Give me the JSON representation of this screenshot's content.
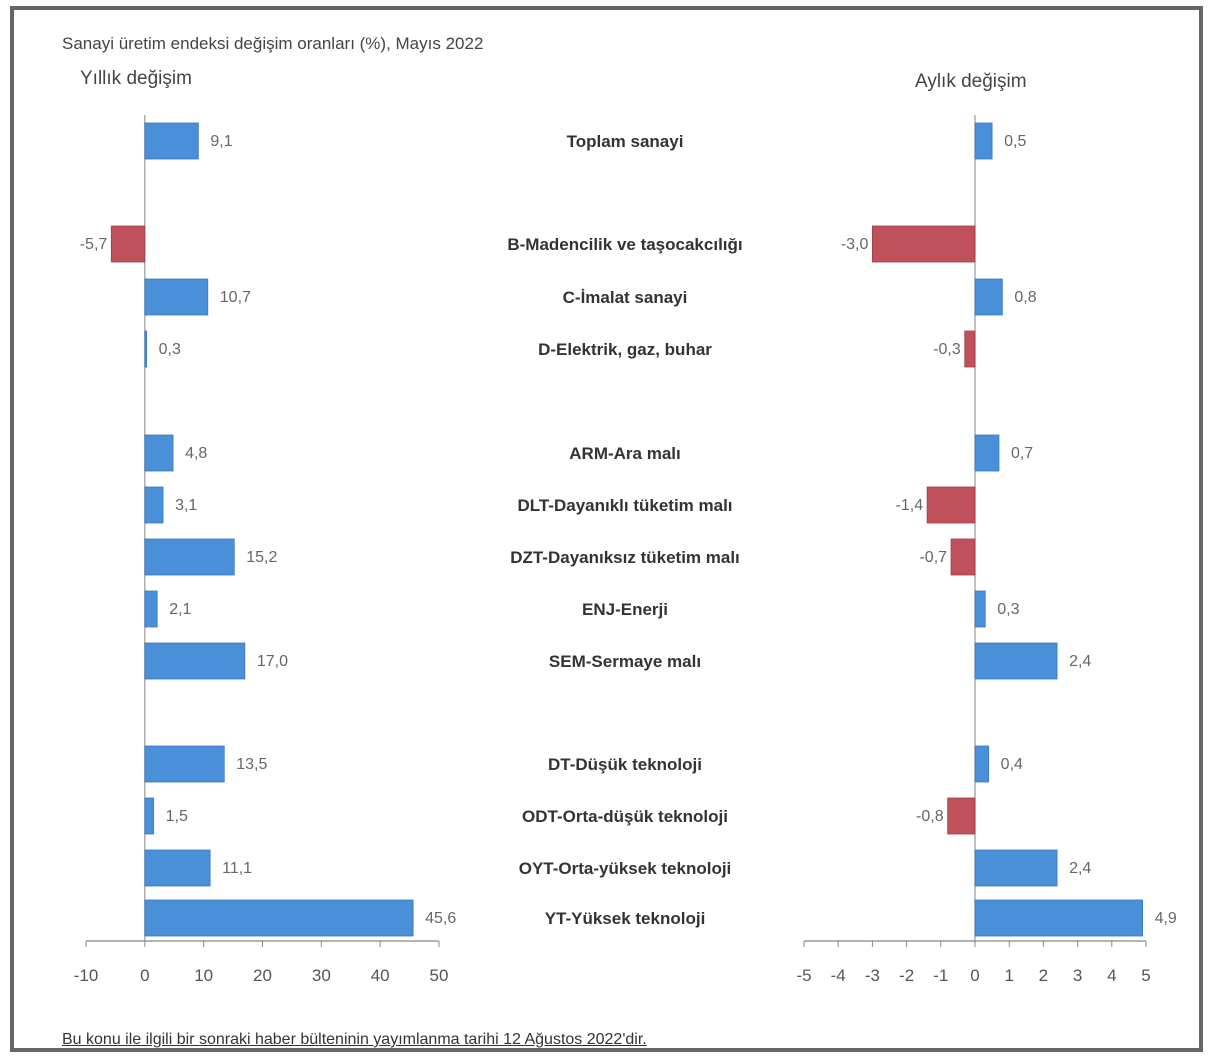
{
  "chart_data": {
    "type": "bar",
    "title": "Sanayi üretim endeksi değişim oranları (%), Mayıs 2022",
    "categories": [
      "Toplam sanayi",
      "B-Madencilik ve taşocakcılığı",
      "C-İmalat sanayi",
      "D-Elektrik, gaz, buhar",
      "ARM-Ara malı",
      "DLT-Dayanıklı tüketim malı",
      "DZT-Dayanıksız tüketim malı",
      "ENJ-Enerji",
      "SEM-Sermaye malı",
      "DT-Düşük teknoloji",
      "ODT-Orta-düşük teknoloji",
      "OYT-Orta-yüksek teknoloji",
      "YT-Yüksek teknoloji"
    ],
    "panels": [
      {
        "title": "Yıllık değişim",
        "values": [
          9.1,
          -5.7,
          10.7,
          0.3,
          4.8,
          3.1,
          15.2,
          2.1,
          17.0,
          13.5,
          1.5,
          11.1,
          45.6
        ],
        "labels": [
          "9,1",
          "-5,7",
          "10,7",
          "0,3",
          "4,8",
          "3,1",
          "15,2",
          "2,1",
          "17,0",
          "13,5",
          "1,5",
          "11,1",
          "45,6"
        ],
        "xlim": [
          -10,
          50
        ],
        "ticks": [
          "-10",
          "0",
          "10",
          "20",
          "30",
          "40",
          "50"
        ]
      },
      {
        "title": "Aylık değişim",
        "values": [
          0.5,
          -3.0,
          0.8,
          -0.3,
          0.7,
          -1.4,
          -0.7,
          0.3,
          2.4,
          0.4,
          -0.8,
          2.4,
          4.9
        ],
        "labels": [
          "0,5",
          "-3,0",
          "0,8",
          "-0,3",
          "0,7",
          "-1,4",
          "-0,7",
          "0,3",
          "2,4",
          "0,4",
          "-0,8",
          "2,4",
          "4,9"
        ],
        "xlim": [
          -5,
          5
        ],
        "ticks": [
          "-5",
          "-4",
          "-3",
          "-2",
          "-1",
          "0",
          "1",
          "2",
          "3",
          "4",
          "5"
        ]
      }
    ],
    "colors": {
      "positive": "#4a90d9",
      "negative": "#c0505a"
    }
  },
  "footer": "Bu konu ile ilgili bir sonraki haber bülteninin yayımlanma tarihi 12 Ağustos 2022'dir."
}
